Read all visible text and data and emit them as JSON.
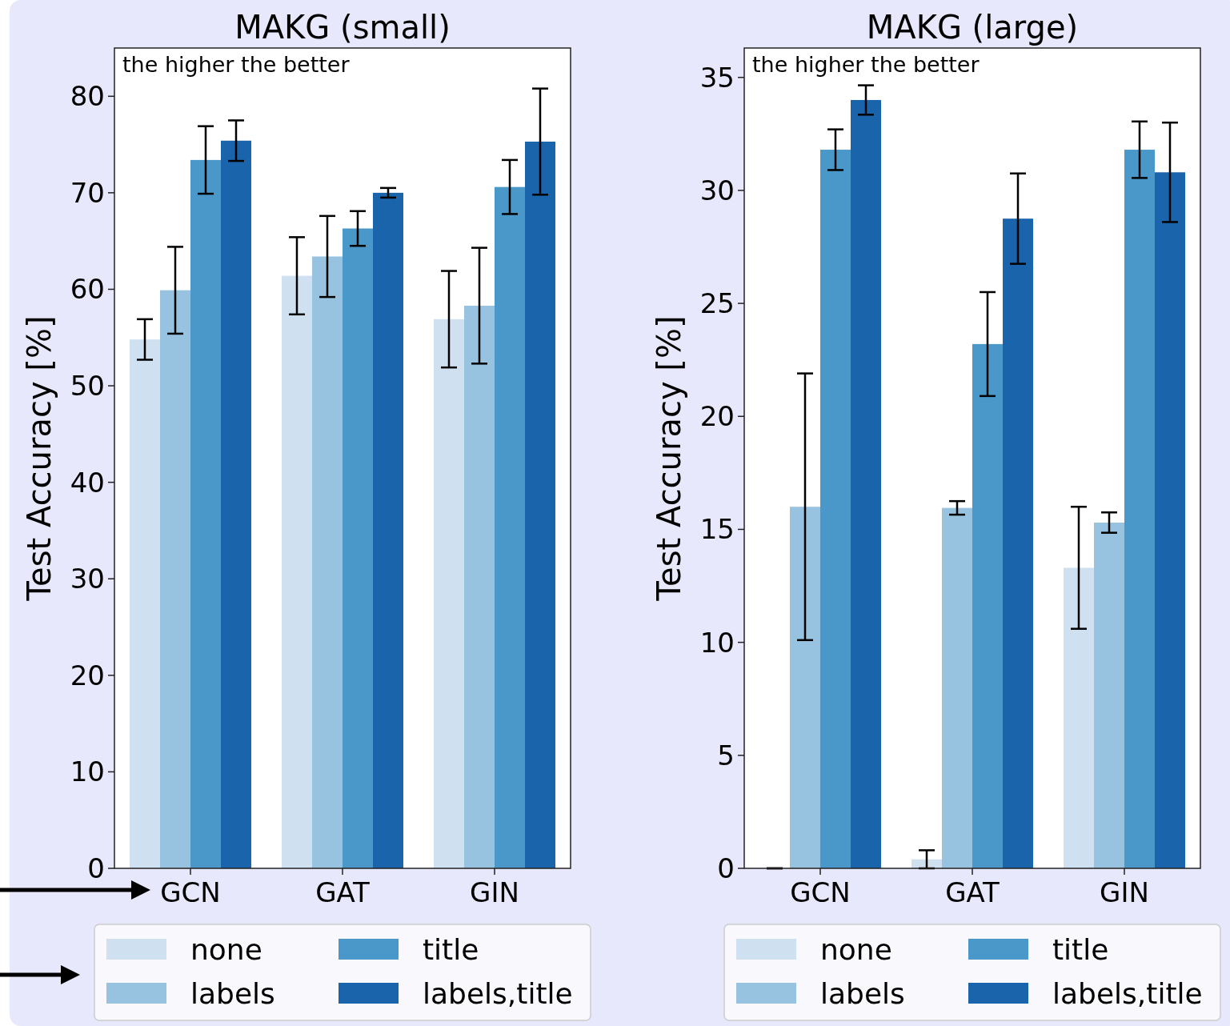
{
  "chart_data": [
    {
      "type": "bar",
      "title": "MAKG (small)",
      "ylabel": "Test Accuracy [%]",
      "annotations": [
        "the higher the better"
      ],
      "categories": [
        "GCN",
        "GAT",
        "GIN"
      ],
      "ylim": [
        0,
        85
      ],
      "yticks": [
        0,
        10,
        20,
        30,
        40,
        50,
        60,
        70,
        80
      ],
      "legend": "bottom",
      "grid": false,
      "series": [
        {
          "name": "none",
          "color": "#cfe0f0",
          "values": [
            54.8,
            61.4,
            56.9
          ],
          "errors": [
            2.1,
            4.0,
            5.0
          ]
        },
        {
          "name": "labels",
          "color": "#97c3e0",
          "values": [
            59.9,
            63.4,
            58.3
          ],
          "errors": [
            4.5,
            4.2,
            6.0
          ]
        },
        {
          "name": "title",
          "color": "#4a98c9",
          "values": [
            73.4,
            66.3,
            70.6
          ],
          "errors": [
            3.5,
            1.8,
            2.8
          ]
        },
        {
          "name": "labels,title",
          "color": "#1a64ab",
          "values": [
            75.4,
            70.0,
            75.3
          ],
          "errors": [
            2.1,
            0.5,
            5.5
          ]
        }
      ]
    },
    {
      "type": "bar",
      "title": "MAKG (large)",
      "ylabel": "Test Accuracy [%]",
      "annotations": [
        "the higher the better"
      ],
      "categories": [
        "GCN",
        "GAT",
        "GIN"
      ],
      "ylim": [
        0,
        36.3
      ],
      "yticks": [
        0,
        5,
        10,
        15,
        20,
        25,
        30,
        35
      ],
      "legend": "bottom",
      "grid": false,
      "series": [
        {
          "name": "none",
          "color": "#cfe0f0",
          "values": [
            0,
            0.4,
            13.3
          ],
          "errors": [
            0,
            0.4,
            2.7
          ]
        },
        {
          "name": "labels",
          "color": "#97c3e0",
          "values": [
            16.0,
            15.95,
            15.3
          ],
          "errors": [
            5.9,
            0.3,
            0.45
          ]
        },
        {
          "name": "title",
          "color": "#4a98c9",
          "values": [
            31.8,
            23.2,
            31.8
          ],
          "errors": [
            0.9,
            2.3,
            1.25
          ]
        },
        {
          "name": "labels,title",
          "color": "#1a64ab",
          "values": [
            34.0,
            28.75,
            30.8
          ],
          "errors": [
            0.65,
            2.0,
            2.2
          ]
        }
      ]
    }
  ]
}
